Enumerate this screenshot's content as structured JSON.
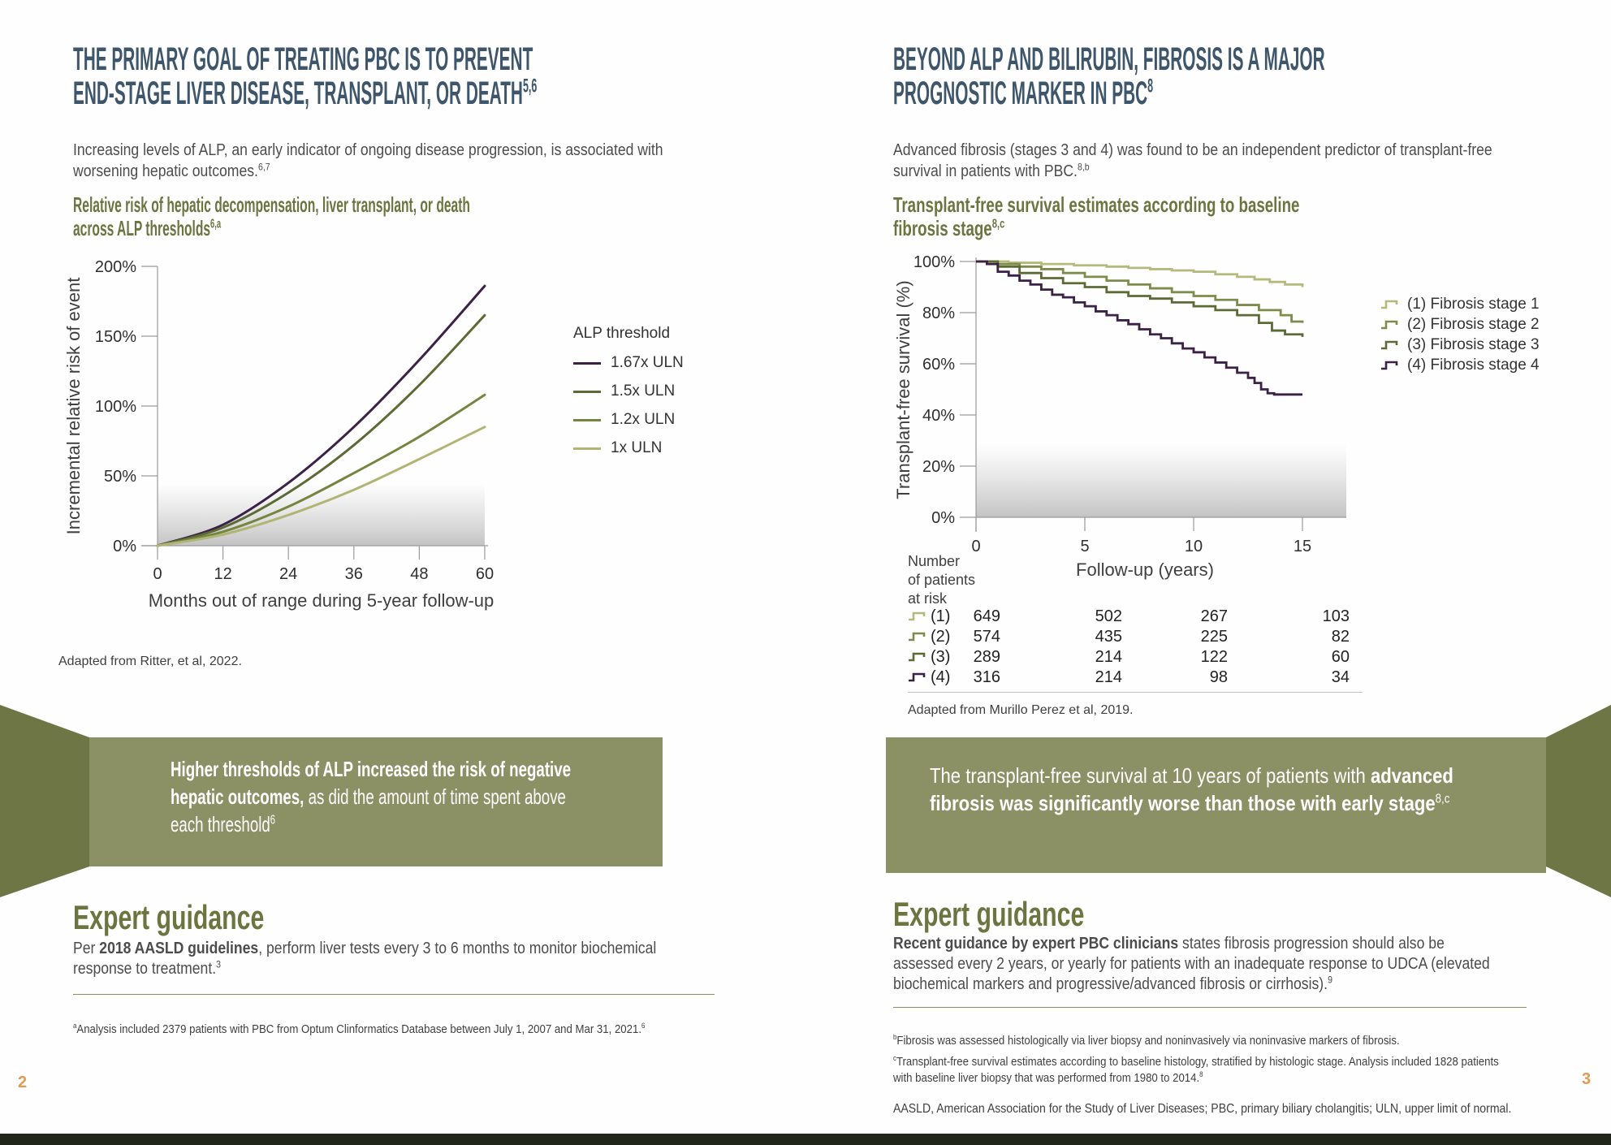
{
  "colors": {
    "headline_blue": "#3e566b",
    "olive_heading": "#6c7540",
    "callout_bg": "#8b9164",
    "callout_fold": "#6f7646",
    "page_number_orange": "#e09a52",
    "bottom_bar": "#20261a",
    "line_purple": "#3a2145",
    "line_olive_dark": "#5c6b35",
    "line_olive_mid": "#75843f",
    "line_olive_light": "#b0b573"
  },
  "page_left": {
    "page_number": "2",
    "title_lines": [
      "THE PRIMARY GOAL OF TREATING PBC IS TO PREVENT",
      "END-STAGE LIVER DISEASE, TRANSPLANT, OR DEATH"
    ],
    "title_sup": "5,6",
    "intro_lines": [
      "Increasing levels of ALP, an early indicator of ongoing disease progression, is associated with",
      "worsening hepatic outcomes."
    ],
    "intro_sup": "6,7",
    "chart_heading_lines": [
      "Relative risk of hepatic decompensation, liver transplant, or death",
      "across ALP thresholds"
    ],
    "chart_heading_sup": "6,a",
    "source": "Adapted from Ritter, et al, 2022.",
    "callout": {
      "bold": "Higher thresholds of ALP increased the risk of negative hepatic outcomes,",
      "regular": " as did the amount of time spent above each threshold",
      "sup": "6"
    },
    "expert": {
      "heading": "Expert guidance",
      "prefix": "Per ",
      "bold": "2018 AASLD guidelines",
      "rest": ", perform liver tests every 3 to 6 months to monitor biochemical response to treatment.",
      "sup": "3"
    },
    "footnote": {
      "sup": "a",
      "text": "Analysis included 2379 patients with PBC from Optum Clinformatics Database between July 1, 2007 and Mar 31, 2021.",
      "end_sup": "6"
    }
  },
  "page_right": {
    "page_number": "3",
    "title_lines": [
      "BEYOND ALP AND BILIRUBIN, FIBROSIS IS A MAJOR",
      "PROGNOSTIC MARKER IN PBC"
    ],
    "title_sup": "8",
    "intro_lines": [
      "Advanced fibrosis (stages 3 and 4) was found to be an independent predictor of transplant-free",
      "survival in patients with PBC."
    ],
    "intro_sup": "8,b",
    "chart_heading_lines": [
      "Transplant-free survival estimates according to baseline",
      "fibrosis stage"
    ],
    "chart_heading_sup": "8,c",
    "source": "Adapted from Murillo Perez et al, 2019.",
    "callout": {
      "regular": "The transplant-free survival at 10 years of patients with ",
      "bold": "advanced fibrosis was significantly worse than those with early stage",
      "sup": "8,c"
    },
    "expert": {
      "heading": "Expert guidance",
      "bold": "Recent guidance by expert PBC clinicians",
      "rest": " states fibrosis progression should also be assessed every 2 years, or yearly for patients with an inadequate response to UDCA (elevated biochemical markers and progressive/advanced fibrosis or cirrhosis).",
      "sup": "9"
    },
    "footnotes": [
      {
        "sup": "b",
        "text": "Fibrosis was assessed histologically via liver biopsy and noninvasively via noninvasive markers of fibrosis.",
        "end_sup": ""
      },
      {
        "sup": "c",
        "text": "Transplant-free survival estimates according to baseline histology, stratified by histologic stage. Analysis included 1828 patients with baseline liver biopsy that was performed from 1980 to 2014.",
        "end_sup": "8"
      }
    ],
    "abbreviations": "AASLD, American Association for the Study of Liver Diseases; PBC, primary biliary cholangitis; ULN, upper limit of normal."
  },
  "chart_data": [
    {
      "type": "line",
      "title": "Relative risk of hepatic decompensation, liver transplant, or death across ALP thresholds",
      "xlabel": "Months out of range during 5-year follow-up",
      "ylabel": "Incremental relative risk of event",
      "x": [
        0,
        12,
        24,
        36,
        48,
        60
      ],
      "xlim": [
        0,
        60
      ],
      "ylim": [
        0,
        200
      ],
      "ytick_values": [
        0,
        50,
        100,
        150,
        200
      ],
      "ytick_labels": [
        "0%",
        "50%",
        "100%",
        "150%",
        "200%"
      ],
      "grid": false,
      "legend_position": "right",
      "legend_title": "ALP threshold",
      "series": [
        {
          "name": "1.67x ULN",
          "color": "#3a2145",
          "values": [
            0,
            15,
            45,
            85,
            133,
            186
          ]
        },
        {
          "name": "1.5x ULN",
          "color": "#5c6b35",
          "values": [
            0,
            13,
            38,
            72,
            115,
            165
          ]
        },
        {
          "name": "1.2x ULN",
          "color": "#75843f",
          "values": [
            0,
            10,
            28,
            52,
            78,
            108
          ]
        },
        {
          "name": "1x ULN",
          "color": "#b0b573",
          "values": [
            0,
            8,
            22,
            40,
            62,
            85
          ]
        }
      ]
    },
    {
      "type": "line",
      "subtype": "kaplan-meier-step",
      "title": "Transplant-free survival estimates according to baseline fibrosis stage",
      "xlabel": "Follow-up (years)",
      "ylabel": "Transplant-free survival (%)",
      "xtick_values": [
        0,
        5,
        10,
        15
      ],
      "xlim": [
        0,
        15
      ],
      "ylim": [
        0,
        100
      ],
      "ytick_values": [
        0,
        20,
        40,
        60,
        80,
        100
      ],
      "ytick_labels": [
        "0%",
        "20%",
        "40%",
        "60%",
        "80%",
        "100%"
      ],
      "grid": false,
      "legend_position": "right",
      "series": [
        {
          "name": "(1) Fibrosis stage 1",
          "color": "#b4ba7c",
          "points": [
            [
              0,
              100
            ],
            [
              1.5,
              99.5
            ],
            [
              3,
              99
            ],
            [
              4.5,
              98.5
            ],
            [
              6,
              98
            ],
            [
              7,
              97.5
            ],
            [
              8,
              97
            ],
            [
              9,
              96.5
            ],
            [
              10,
              96
            ],
            [
              11,
              95
            ],
            [
              12,
              94
            ],
            [
              12.8,
              93
            ],
            [
              13.5,
              92
            ],
            [
              14.2,
              91
            ],
            [
              15,
              90
            ]
          ]
        },
        {
          "name": "(2) Fibrosis stage 2",
          "color": "#7d8b4b",
          "points": [
            [
              0,
              100
            ],
            [
              1,
              99
            ],
            [
              2,
              98
            ],
            [
              3,
              97
            ],
            [
              4,
              95.5
            ],
            [
              5,
              94
            ],
            [
              6,
              92.5
            ],
            [
              7,
              91
            ],
            [
              8,
              89.5
            ],
            [
              9,
              88
            ],
            [
              10,
              86.5
            ],
            [
              11,
              85
            ],
            [
              12,
              83
            ],
            [
              13,
              81
            ],
            [
              14,
              79
            ],
            [
              14.5,
              76.5
            ],
            [
              15,
              76
            ]
          ]
        },
        {
          "name": "(3) Fibrosis stage 3",
          "color": "#5c6b35",
          "points": [
            [
              0,
              100
            ],
            [
              1,
              98
            ],
            [
              2,
              95.5
            ],
            [
              3,
              93.5
            ],
            [
              4,
              91.5
            ],
            [
              5,
              90
            ],
            [
              6,
              88
            ],
            [
              7,
              86.5
            ],
            [
              8,
              85.5
            ],
            [
              9,
              84
            ],
            [
              10,
              82.5
            ],
            [
              11,
              81
            ],
            [
              12,
              79
            ],
            [
              13,
              76
            ],
            [
              13.6,
              73
            ],
            [
              14.2,
              71.5
            ],
            [
              15,
              70.5
            ]
          ]
        },
        {
          "name": "(4) Fibrosis stage 4",
          "color": "#3a2145",
          "points": [
            [
              0,
              100
            ],
            [
              0.5,
              99
            ],
            [
              1,
              96
            ],
            [
              1.5,
              94.5
            ],
            [
              2,
              92.5
            ],
            [
              2.5,
              91
            ],
            [
              3,
              89
            ],
            [
              3.5,
              87
            ],
            [
              4,
              86
            ],
            [
              4.5,
              84
            ],
            [
              5,
              82.5
            ],
            [
              5.5,
              80.5
            ],
            [
              6,
              79
            ],
            [
              6.5,
              77
            ],
            [
              7,
              75.5
            ],
            [
              7.5,
              73.5
            ],
            [
              8,
              71.5
            ],
            [
              8.5,
              70
            ],
            [
              9,
              68
            ],
            [
              9.5,
              66
            ],
            [
              10,
              64.5
            ],
            [
              10.5,
              62.5
            ],
            [
              11,
              60.5
            ],
            [
              11.5,
              58.5
            ],
            [
              12,
              56.5
            ],
            [
              12.5,
              54.5
            ],
            [
              12.8,
              52.5
            ],
            [
              13.1,
              50
            ],
            [
              13.4,
              48.5
            ],
            [
              13.7,
              48
            ],
            [
              15,
              48
            ]
          ]
        }
      ],
      "risk_table": {
        "label_lines": [
          "Number",
          "of patients",
          "at risk"
        ],
        "time_points": [
          0,
          5,
          10,
          15
        ],
        "rows": [
          {
            "key": "(1)",
            "color": "#b4ba7c",
            "values": [
              "649",
              "502",
              "267",
              "103"
            ]
          },
          {
            "key": "(2)",
            "color": "#7d8b4b",
            "values": [
              "574",
              "435",
              "225",
              "82"
            ]
          },
          {
            "key": "(3)",
            "color": "#5c6b35",
            "values": [
              "289",
              "214",
              "122",
              "60"
            ]
          },
          {
            "key": "(4)",
            "color": "#3a2145",
            "values": [
              "316",
              "214",
              "98",
              "34"
            ]
          }
        ]
      }
    }
  ]
}
